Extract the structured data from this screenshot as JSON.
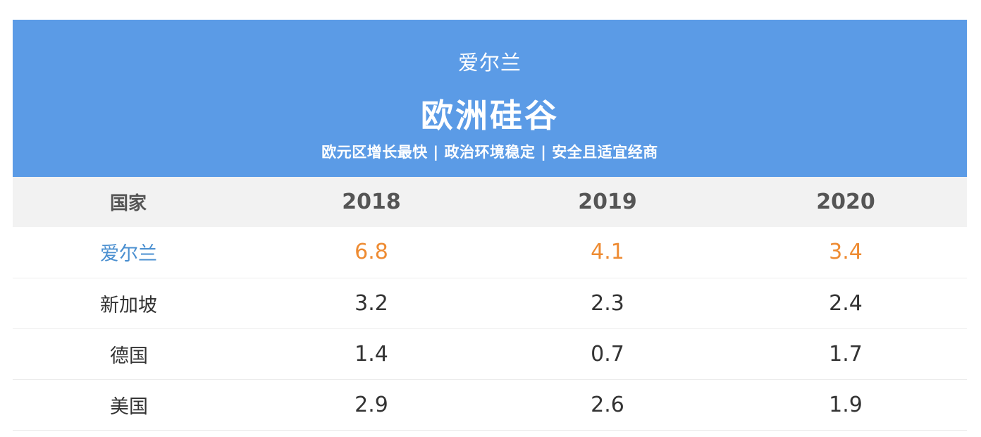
{
  "banner": {
    "supertitle": "爱尔兰",
    "title": "欧洲硅谷",
    "subtitle": "欧元区增长最快 | 政治环境稳定 | 安全且适宜经商"
  },
  "table": {
    "headers": [
      "国家",
      "2018",
      "2019",
      "2020"
    ],
    "rows": [
      {
        "country": "爱尔兰",
        "values": [
          "6.8",
          "4.1",
          "3.4"
        ]
      },
      {
        "country": "新加坡",
        "values": [
          "3.2",
          "2.3",
          "2.4"
        ]
      },
      {
        "country": "德国",
        "values": [
          "1.4",
          "0.7",
          "1.7"
        ]
      },
      {
        "country": "美国",
        "values": [
          "2.9",
          "2.6",
          "1.9"
        ]
      }
    ]
  },
  "colors": {
    "banner_bg": "#5b9be6",
    "highlight_country": "#4a8fd0",
    "highlight_value": "#ee8b32"
  }
}
